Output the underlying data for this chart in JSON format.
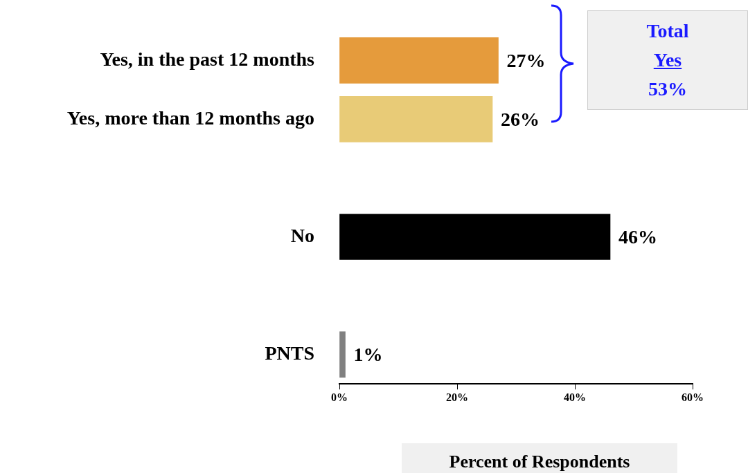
{
  "chart_data": {
    "type": "bar",
    "orientation": "horizontal",
    "xlabel": "Percent of Respondents",
    "categories": [
      "Yes, in the past 12 months",
      "Yes, more than 12 months ago",
      null,
      "No",
      null,
      "PNTS"
    ],
    "values": [
      27,
      26,
      null,
      46,
      null,
      1
    ],
    "colors": [
      "#e59b3c",
      "#e8cb77",
      "#000000",
      "#000000",
      "#000000",
      "#808080"
    ],
    "value_labels": [
      "27%",
      "26%",
      null,
      "46%",
      null,
      "1%"
    ],
    "xlim": [
      0,
      60
    ],
    "xticks": [
      {
        "value": 0,
        "label": "0%"
      },
      {
        "value": 20,
        "label": "20%"
      },
      {
        "value": 40,
        "label": "40%"
      },
      {
        "value": 60,
        "label": "60%"
      }
    ],
    "grid": false,
    "legend": false,
    "annotations": [
      "Total",
      "Yes",
      "53%"
    ]
  }
}
